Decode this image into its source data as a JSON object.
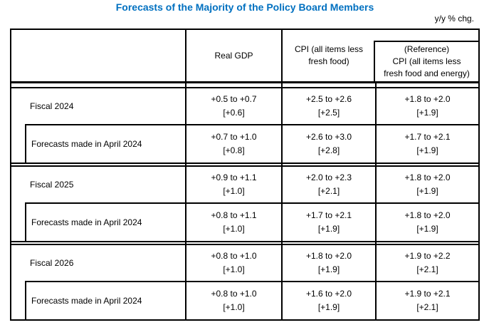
{
  "title": "Forecasts of the Majority of the Policy Board Members",
  "unit_note": "y/y % chg.",
  "colors": {
    "title_blue": "#0070C0",
    "rule_black": "#000000",
    "page_background": "#FFFFFF"
  },
  "header": {
    "row_label_column": "",
    "real_gdp": "Real GDP",
    "cpi": {
      "line1": "CPI (all items less",
      "line2": "fresh food)"
    },
    "reference": {
      "line1": "(Reference)",
      "line2": "CPI (all items less",
      "line3": "fresh food and energy)"
    }
  },
  "groups": [
    {
      "rows": [
        {
          "label": "Fiscal 2024",
          "indented": false,
          "cells": [
            {
              "range": "+0.5 to +0.7",
              "point": "[+0.6]"
            },
            {
              "range": "+2.5 to +2.6",
              "point": "[+2.5]"
            },
            {
              "range": "+1.8 to +2.0",
              "point": "[+1.9]"
            }
          ]
        },
        {
          "label": "Forecasts made in April 2024",
          "indented": true,
          "cells": [
            {
              "range": "+0.7 to +1.0",
              "point": "[+0.8]"
            },
            {
              "range": "+2.6 to +3.0",
              "point": "[+2.8]"
            },
            {
              "range": "+1.7 to +2.1",
              "point": "[+1.9]"
            }
          ]
        }
      ]
    },
    {
      "rows": [
        {
          "label": "Fiscal 2025",
          "indented": false,
          "cells": [
            {
              "range": "+0.9 to +1.1",
              "point": "[+1.0]"
            },
            {
              "range": "+2.0 to +2.3",
              "point": "[+2.1]"
            },
            {
              "range": "+1.8 to +2.0",
              "point": "[+1.9]"
            }
          ]
        },
        {
          "label": "Forecasts made in April 2024",
          "indented": true,
          "cells": [
            {
              "range": "+0.8 to +1.1",
              "point": "[+1.0]"
            },
            {
              "range": "+1.7 to +2.1",
              "point": "[+1.9]"
            },
            {
              "range": "+1.8 to +2.0",
              "point": "[+1.9]"
            }
          ]
        }
      ]
    },
    {
      "rows": [
        {
          "label": "Fiscal 2026",
          "indented": false,
          "cells": [
            {
              "range": "+0.8 to +1.0",
              "point": "[+1.0]"
            },
            {
              "range": "+1.8 to +2.0",
              "point": "[+1.9]"
            },
            {
              "range": "+1.9 to +2.2",
              "point": "[+2.1]"
            }
          ]
        },
        {
          "label": "Forecasts made in April 2024",
          "indented": true,
          "cells": [
            {
              "range": "+0.8 to +1.0",
              "point": "[+1.0]"
            },
            {
              "range": "+1.6 to +2.0",
              "point": "[+1.9]"
            },
            {
              "range": "+1.9 to +2.1",
              "point": "[+2.1]"
            }
          ]
        }
      ]
    }
  ]
}
